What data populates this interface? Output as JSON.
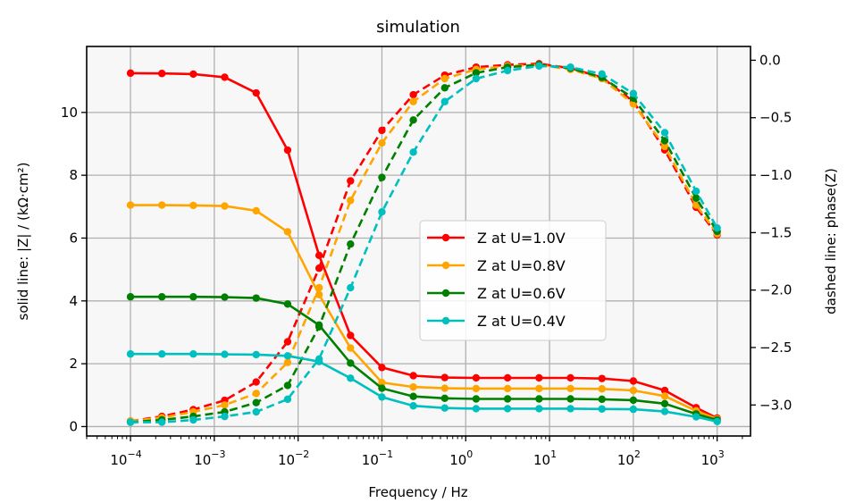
{
  "chart_data": {
    "type": "line",
    "title": "simulation",
    "xlabel": "Frequency / Hz",
    "ylabel": "solid line: |Z| / (kΩ·cm²)",
    "y2label": "dashed line: phase(Z)",
    "xscale": "log",
    "xlim": [
      3e-05,
      2500
    ],
    "ylim": [
      -0.3,
      12.1
    ],
    "y2lim": [
      -3.27,
      0.12
    ],
    "grid": true,
    "legend_position": "center-right",
    "x": [
      0.0001,
      0.000237,
      0.000562,
      0.00133,
      0.00316,
      0.0075,
      0.0178,
      0.0422,
      0.1,
      0.237,
      0.562,
      1.33,
      3.16,
      7.5,
      17.8,
      42.2,
      100,
      237,
      562,
      1000
    ],
    "x_ticks": [
      {
        "value": 0.0001,
        "label": "10",
        "exp": "−4"
      },
      {
        "value": 0.001,
        "label": "10",
        "exp": "−3"
      },
      {
        "value": 0.01,
        "label": "10",
        "exp": "−2"
      },
      {
        "value": 0.1,
        "label": "10",
        "exp": "−1"
      },
      {
        "value": 1,
        "label": "10",
        "exp": "0"
      },
      {
        "value": 10,
        "label": "10",
        "exp": "1"
      },
      {
        "value": 100,
        "label": "10",
        "exp": "2"
      },
      {
        "value": 1000,
        "label": "10",
        "exp": "3"
      }
    ],
    "y_ticks": [
      {
        "value": 0,
        "label": "0"
      },
      {
        "value": 2,
        "label": "2"
      },
      {
        "value": 4,
        "label": "4"
      },
      {
        "value": 6,
        "label": "6"
      },
      {
        "value": 8,
        "label": "8"
      },
      {
        "value": 10,
        "label": "10"
      }
    ],
    "y2_ticks": [
      {
        "value": 0,
        "label": "0.0"
      },
      {
        "value": -0.5,
        "label": "−0.5"
      },
      {
        "value": -1,
        "label": "−1.0"
      },
      {
        "value": -1.5,
        "label": "−1.5"
      },
      {
        "value": -2,
        "label": "−2.0"
      },
      {
        "value": -2.5,
        "label": "−2.5"
      },
      {
        "value": -3,
        "label": "−3.0"
      }
    ],
    "series": [
      {
        "name": "Z at U=1.0V",
        "color": "#ff0000",
        "magnitude": [
          11.25,
          11.24,
          11.22,
          11.12,
          10.62,
          8.8,
          5.45,
          2.9,
          1.88,
          1.62,
          1.56,
          1.55,
          1.55,
          1.55,
          1.55,
          1.53,
          1.45,
          1.15,
          0.6,
          0.27
        ],
        "phase": [
          -3.14,
          -3.1,
          -3.04,
          -2.96,
          -2.8,
          -2.45,
          -1.81,
          -1.05,
          -0.61,
          -0.3,
          -0.13,
          -0.06,
          -0.04,
          -0.03,
          -0.07,
          -0.15,
          -0.36,
          -0.78,
          -1.28,
          -1.52
        ]
      },
      {
        "name": "Z at U=0.8V",
        "color": "#ffa500",
        "magnitude": [
          7.05,
          7.05,
          7.04,
          7.02,
          6.87,
          6.2,
          4.2,
          2.5,
          1.4,
          1.26,
          1.22,
          1.21,
          1.21,
          1.21,
          1.21,
          1.2,
          1.15,
          0.97,
          0.5,
          0.24
        ],
        "phase": [
          -3.14,
          -3.11,
          -3.06,
          -3.0,
          -2.9,
          -2.63,
          -1.98,
          -1.22,
          -0.72,
          -0.36,
          -0.16,
          -0.08,
          -0.05,
          -0.04,
          -0.08,
          -0.16,
          -0.38,
          -0.75,
          -1.26,
          -1.51
        ]
      },
      {
        "name": "Z at U=0.6V",
        "color": "#008000",
        "magnitude": [
          4.13,
          4.13,
          4.13,
          4.12,
          4.09,
          3.9,
          3.23,
          2.02,
          1.22,
          0.96,
          0.9,
          0.88,
          0.88,
          0.88,
          0.88,
          0.87,
          0.84,
          0.73,
          0.4,
          0.21
        ],
        "phase": [
          -3.15,
          -3.13,
          -3.1,
          -3.06,
          -2.98,
          -2.83,
          -2.32,
          -1.6,
          -1.02,
          -0.52,
          -0.24,
          -0.11,
          -0.06,
          -0.04,
          -0.07,
          -0.15,
          -0.33,
          -0.7,
          -1.2,
          -1.49
        ]
      },
      {
        "name": "Z at U=0.4V",
        "color": "#00bfbf",
        "magnitude": [
          2.31,
          2.31,
          2.31,
          2.3,
          2.29,
          2.25,
          2.07,
          1.54,
          0.94,
          0.66,
          0.59,
          0.57,
          0.57,
          0.57,
          0.57,
          0.56,
          0.55,
          0.48,
          0.31,
          0.16
        ],
        "phase": [
          -3.15,
          -3.15,
          -3.13,
          -3.1,
          -3.06,
          -2.95,
          -2.6,
          -1.98,
          -1.32,
          -0.8,
          -0.36,
          -0.16,
          -0.09,
          -0.05,
          -0.06,
          -0.12,
          -0.29,
          -0.63,
          -1.14,
          -1.46
        ]
      }
    ]
  }
}
